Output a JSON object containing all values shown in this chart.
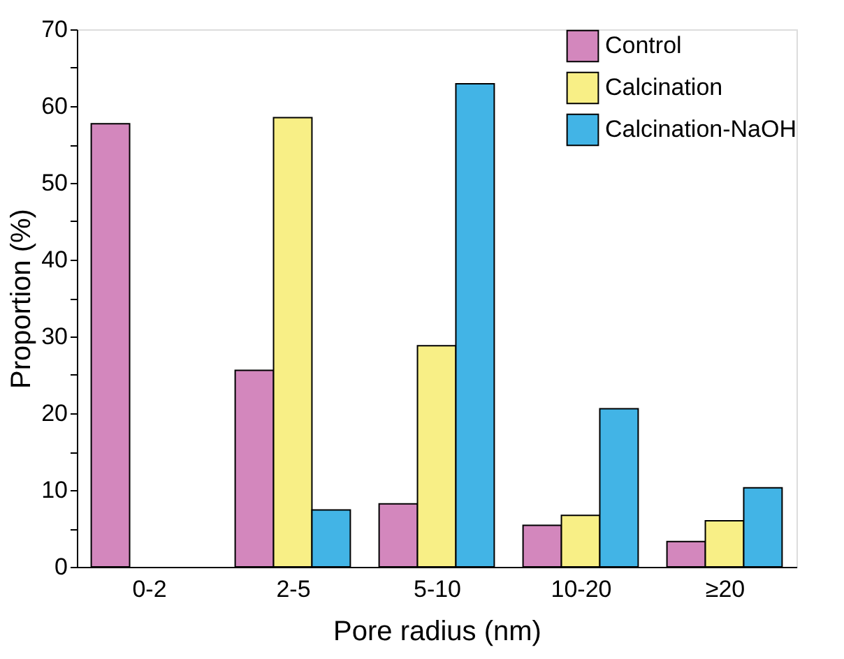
{
  "chart_data": {
    "type": "bar",
    "xlabel": "Pore radius (nm)",
    "ylabel": "Proportion (%)",
    "categories": [
      "0-2",
      "2-5",
      "5-10",
      "10-20",
      "≥20"
    ],
    "series": [
      {
        "name": "Control",
        "color": "#d387bd",
        "values": [
          57.7,
          25.6,
          8.2,
          5.4,
          3.3
        ]
      },
      {
        "name": "Calcination",
        "color": "#f8ef86",
        "values": [
          null,
          58.5,
          28.8,
          6.7,
          6.0
        ]
      },
      {
        "name": "Calcination-NaOH",
        "color": "#42b4e6",
        "values": [
          null,
          7.4,
          62.9,
          20.6,
          10.3
        ]
      }
    ],
    "ylim": [
      0,
      70
    ],
    "yticks": [
      0,
      {
        "value": 5,
        "label": null
      },
      10,
      {
        "value": 15,
        "label": null
      },
      20,
      {
        "value": 25,
        "label": null
      },
      30,
      {
        "value": 35,
        "label": null
      },
      40,
      {
        "value": 45,
        "label": null
      },
      50,
      {
        "value": 55,
        "label": null
      },
      60,
      {
        "value": 65,
        "label": null
      },
      70
    ],
    "grid": false,
    "legend": "top right"
  }
}
